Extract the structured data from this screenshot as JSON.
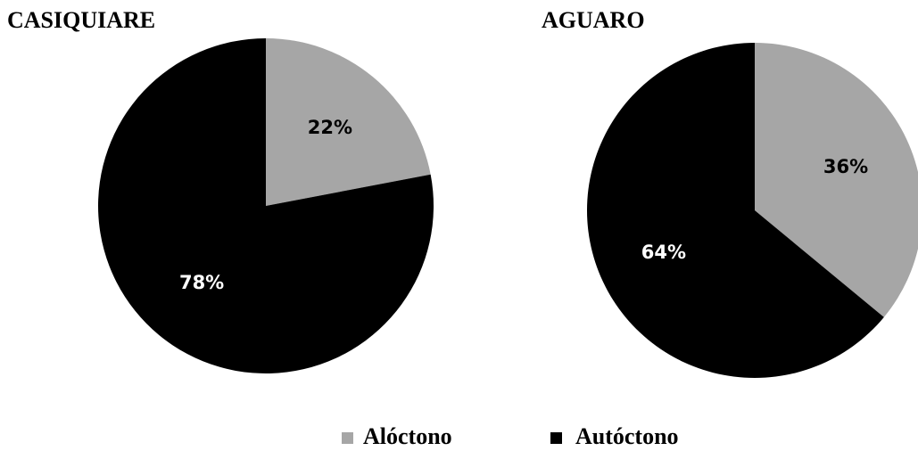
{
  "chart_data": [
    {
      "type": "pie",
      "title": "CASIQUIARE",
      "categories": [
        "Alóctono",
        "Autóctono"
      ],
      "values": [
        22,
        78
      ],
      "value_labels": [
        "22%",
        "78%"
      ],
      "colors": [
        "#a6a6a6",
        "#000000"
      ]
    },
    {
      "type": "pie",
      "title": "AGUARO",
      "categories": [
        "Alóctono",
        "Autóctono"
      ],
      "values": [
        36,
        64
      ],
      "value_labels": [
        "36%",
        "64%"
      ],
      "colors": [
        "#a6a6a6",
        "#000000"
      ]
    }
  ]
}
